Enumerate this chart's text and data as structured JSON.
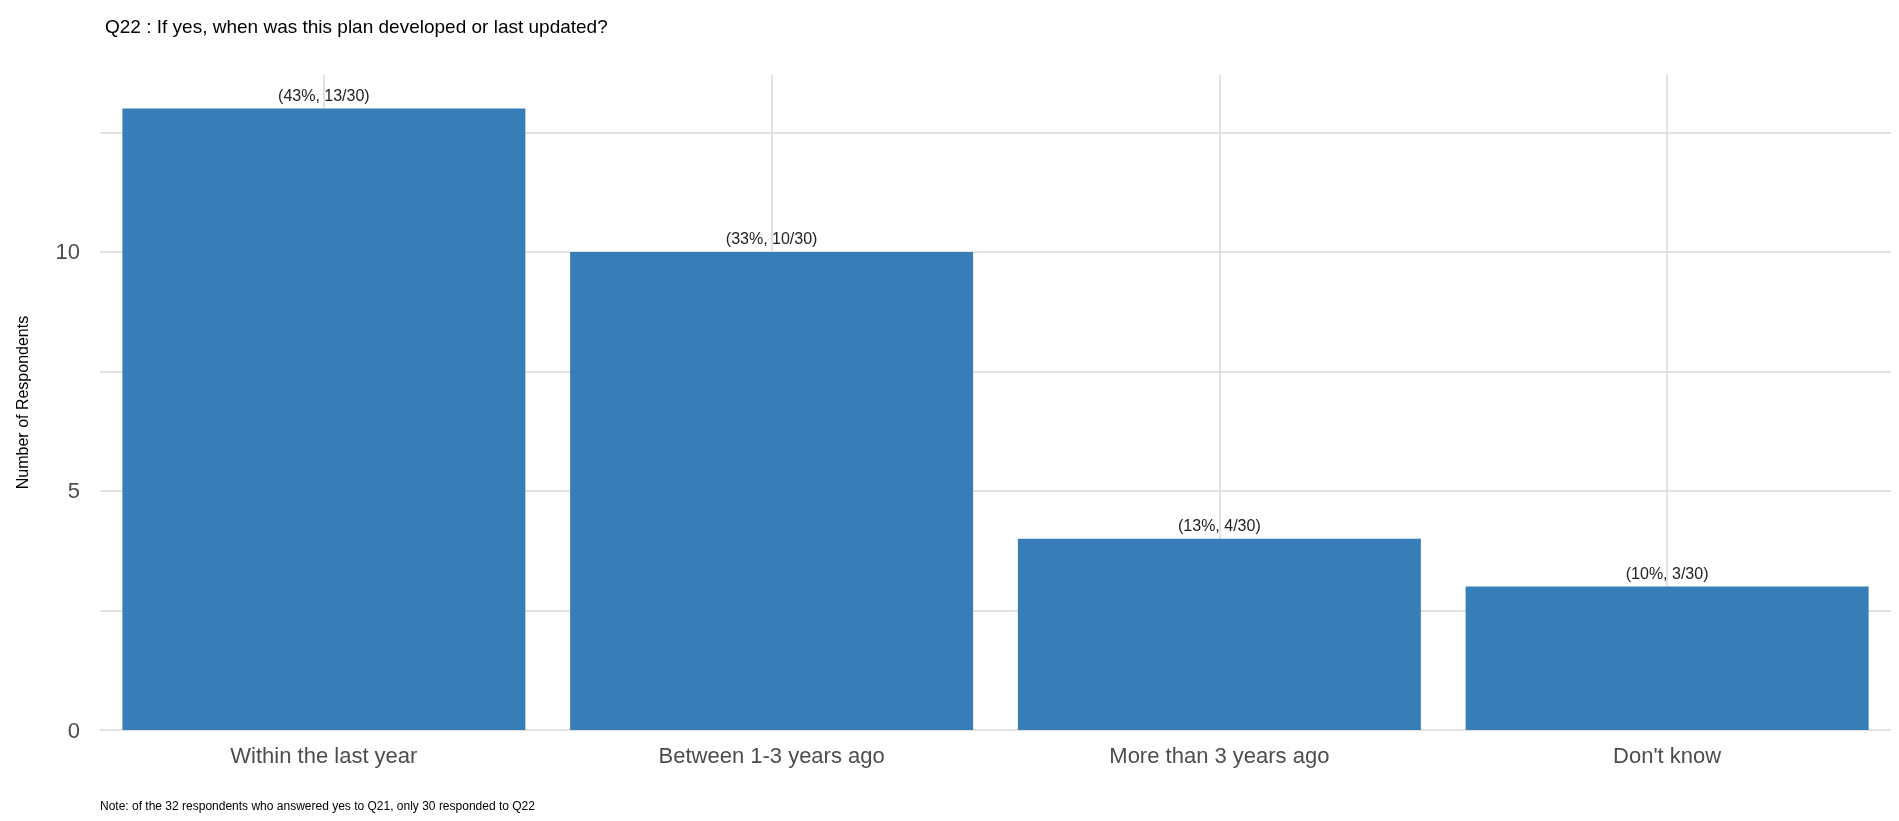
{
  "chart_data": {
    "type": "bar",
    "title": "Q22 : If yes, when was this plan developed or last updated?",
    "ylabel": "Number of Respondents",
    "categories": [
      "Within the last year",
      "Between 1-3 years ago",
      "More than 3 years ago",
      "Don't know"
    ],
    "values": [
      13,
      10,
      4,
      3
    ],
    "value_labels": [
      "(43%, 13/30)",
      "(33%, 10/30)",
      "(13%, 4/30)",
      "(10%, 3/30)"
    ],
    "color": "#377eb8",
    "ylim": [
      0,
      13.7
    ],
    "yticks": [
      0,
      {
        "value": 2.5,
        "label": null
      },
      5,
      {
        "value": 7.5,
        "label": null
      },
      10,
      {
        "value": 12.5,
        "label": null
      }
    ],
    "grid": true,
    "annotations": [
      "Note: of the 32 respondents who answered yes to Q21, only 30 responded to Q22"
    ]
  }
}
